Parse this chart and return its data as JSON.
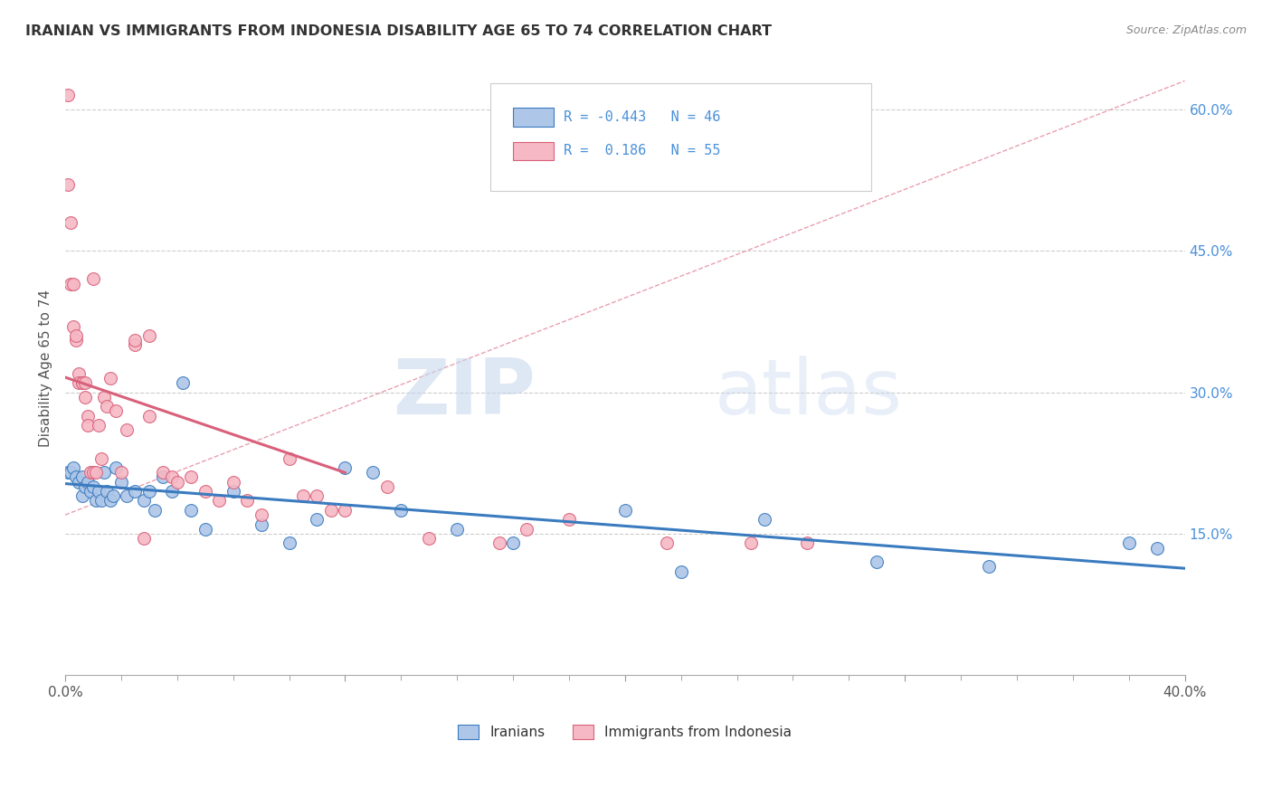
{
  "title": "IRANIAN VS IMMIGRANTS FROM INDONESIA DISABILITY AGE 65 TO 74 CORRELATION CHART",
  "source": "Source: ZipAtlas.com",
  "ylabel": "Disability Age 65 to 74",
  "xlim": [
    0.0,
    0.4
  ],
  "ylim": [
    0.0,
    0.65
  ],
  "x_ticks": [
    0.0,
    0.1,
    0.2,
    0.3,
    0.4
  ],
  "x_tick_labels": [
    "0.0%",
    "",
    "",
    "",
    "40.0%"
  ],
  "x_minor_ticks": [
    0.02,
    0.04,
    0.06,
    0.08,
    0.12,
    0.14,
    0.16,
    0.18,
    0.22,
    0.24,
    0.26,
    0.28,
    0.32,
    0.34,
    0.36,
    0.38
  ],
  "y_ticks_right": [
    0.15,
    0.3,
    0.45,
    0.6
  ],
  "y_tick_labels_right": [
    "15.0%",
    "30.0%",
    "45.0%",
    "60.0%"
  ],
  "iranian_color": "#aec6e8",
  "indonesian_color": "#f5b8c4",
  "iranian_R": -0.443,
  "iranian_N": 46,
  "indonesian_R": 0.186,
  "indonesian_N": 55,
  "iranian_line_color": "#3a7bbf",
  "indonesian_line_color": "#d9607a",
  "dashed_line_color": "#e8a0b0",
  "watermark_zip": "ZIP",
  "watermark_atlas": "atlas",
  "legend_box_color": "#f5f5f5",
  "legend_border_color": "#cccccc",
  "iranian_scatter_x": [
    0.001,
    0.002,
    0.003,
    0.004,
    0.005,
    0.006,
    0.006,
    0.007,
    0.008,
    0.009,
    0.01,
    0.011,
    0.012,
    0.013,
    0.014,
    0.015,
    0.016,
    0.017,
    0.018,
    0.02,
    0.022,
    0.025,
    0.028,
    0.03,
    0.032,
    0.035,
    0.038,
    0.042,
    0.045,
    0.05,
    0.06,
    0.07,
    0.08,
    0.09,
    0.1,
    0.11,
    0.12,
    0.14,
    0.16,
    0.2,
    0.22,
    0.25,
    0.29,
    0.33,
    0.38,
    0.39
  ],
  "iranian_scatter_y": [
    0.215,
    0.215,
    0.22,
    0.21,
    0.205,
    0.19,
    0.21,
    0.2,
    0.205,
    0.195,
    0.2,
    0.185,
    0.195,
    0.185,
    0.215,
    0.195,
    0.185,
    0.19,
    0.22,
    0.205,
    0.19,
    0.195,
    0.185,
    0.195,
    0.175,
    0.21,
    0.195,
    0.31,
    0.175,
    0.155,
    0.195,
    0.16,
    0.14,
    0.165,
    0.22,
    0.215,
    0.175,
    0.155,
    0.14,
    0.175,
    0.11,
    0.165,
    0.12,
    0.115,
    0.14,
    0.135
  ],
  "indonesian_scatter_x": [
    0.001,
    0.001,
    0.002,
    0.002,
    0.003,
    0.003,
    0.004,
    0.004,
    0.005,
    0.005,
    0.006,
    0.006,
    0.007,
    0.007,
    0.008,
    0.008,
    0.009,
    0.01,
    0.01,
    0.011,
    0.012,
    0.013,
    0.014,
    0.015,
    0.016,
    0.018,
    0.02,
    0.022,
    0.025,
    0.025,
    0.028,
    0.03,
    0.03,
    0.035,
    0.038,
    0.04,
    0.045,
    0.05,
    0.055,
    0.06,
    0.065,
    0.07,
    0.08,
    0.085,
    0.09,
    0.095,
    0.1,
    0.115,
    0.13,
    0.155,
    0.165,
    0.18,
    0.215,
    0.245,
    0.265
  ],
  "indonesian_scatter_y": [
    0.615,
    0.52,
    0.48,
    0.415,
    0.415,
    0.37,
    0.355,
    0.36,
    0.32,
    0.31,
    0.31,
    0.31,
    0.295,
    0.31,
    0.275,
    0.265,
    0.215,
    0.215,
    0.42,
    0.215,
    0.265,
    0.23,
    0.295,
    0.285,
    0.315,
    0.28,
    0.215,
    0.26,
    0.35,
    0.355,
    0.145,
    0.36,
    0.275,
    0.215,
    0.21,
    0.205,
    0.21,
    0.195,
    0.185,
    0.205,
    0.185,
    0.17,
    0.23,
    0.19,
    0.19,
    0.175,
    0.175,
    0.2,
    0.145,
    0.14,
    0.155,
    0.165,
    0.14,
    0.14,
    0.14
  ]
}
